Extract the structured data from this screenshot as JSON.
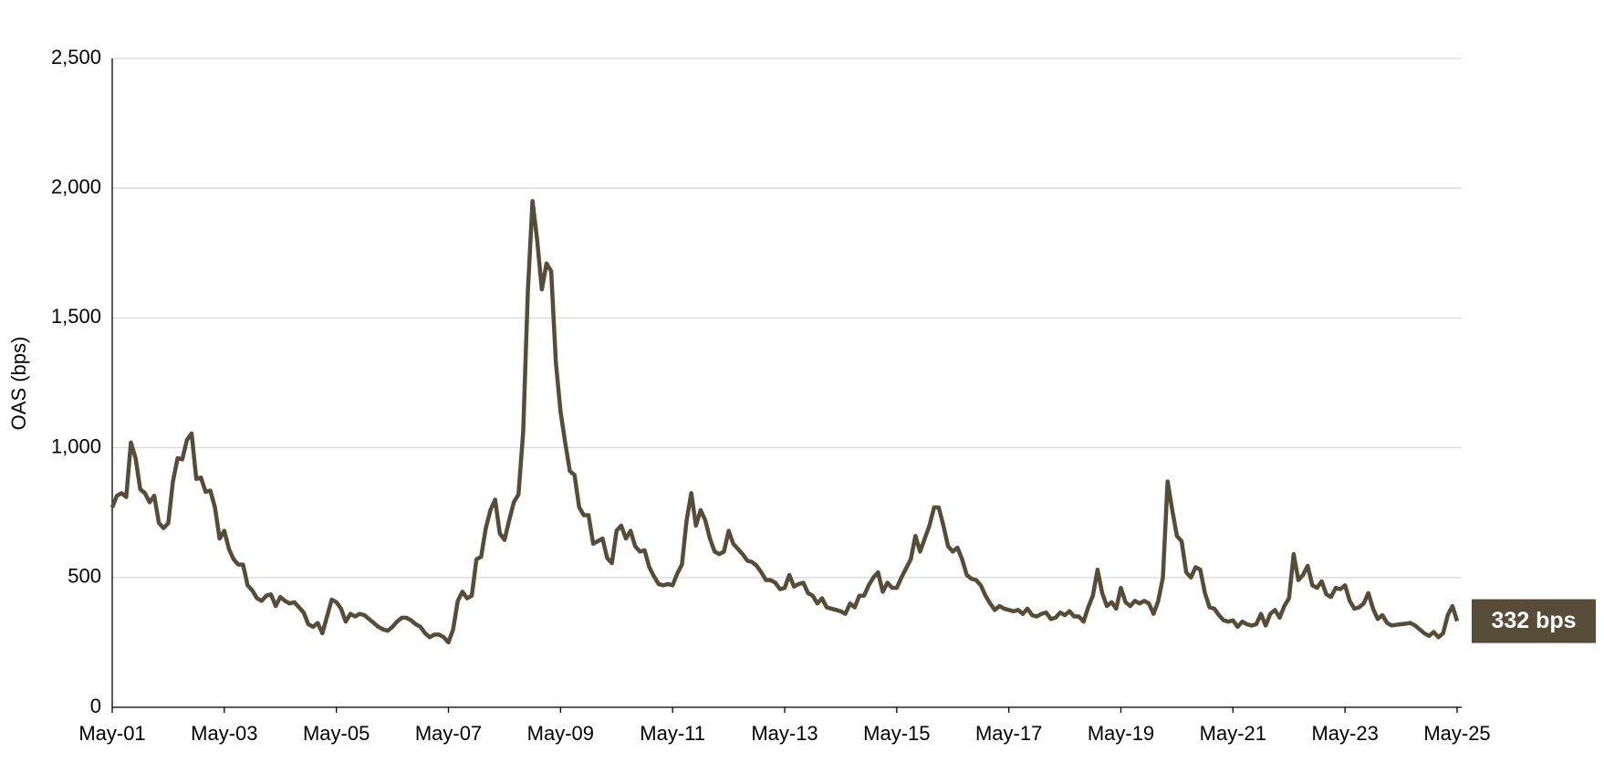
{
  "chart_data": {
    "type": "line",
    "y_label": "OAS (bps)",
    "x": [
      "2001-05",
      "2001-06",
      "2001-07",
      "2001-08",
      "2001-09",
      "2001-10",
      "2001-11",
      "2001-12",
      "2002-01",
      "2002-02",
      "2002-03",
      "2002-04",
      "2002-05",
      "2002-06",
      "2002-07",
      "2002-08",
      "2002-09",
      "2002-10",
      "2002-11",
      "2002-12",
      "2003-01",
      "2003-02",
      "2003-03",
      "2003-04",
      "2003-05",
      "2003-06",
      "2003-07",
      "2003-08",
      "2003-09",
      "2003-10",
      "2003-11",
      "2003-12",
      "2004-01",
      "2004-02",
      "2004-03",
      "2004-04",
      "2004-05",
      "2004-06",
      "2004-07",
      "2004-08",
      "2004-09",
      "2004-10",
      "2004-11",
      "2004-12",
      "2005-01",
      "2005-02",
      "2005-03",
      "2005-04",
      "2005-05",
      "2005-06",
      "2005-07",
      "2005-08",
      "2005-09",
      "2005-10",
      "2005-11",
      "2005-12",
      "2006-01",
      "2006-02",
      "2006-03",
      "2006-04",
      "2006-05",
      "2006-06",
      "2006-07",
      "2006-08",
      "2006-09",
      "2006-10",
      "2006-11",
      "2006-12",
      "2007-01",
      "2007-02",
      "2007-03",
      "2007-04",
      "2007-05",
      "2007-06",
      "2007-07",
      "2007-08",
      "2007-09",
      "2007-10",
      "2007-11",
      "2007-12",
      "2008-01",
      "2008-02",
      "2008-03",
      "2008-04",
      "2008-05",
      "2008-06",
      "2008-07",
      "2008-08",
      "2008-09",
      "2008-10",
      "2008-11",
      "2008-12",
      "2009-01",
      "2009-02",
      "2009-03",
      "2009-04",
      "2009-05",
      "2009-06",
      "2009-07",
      "2009-08",
      "2009-09",
      "2009-10",
      "2009-11",
      "2009-12",
      "2010-01",
      "2010-02",
      "2010-03",
      "2010-04",
      "2010-05",
      "2010-06",
      "2010-07",
      "2010-08",
      "2010-09",
      "2010-10",
      "2010-11",
      "2010-12",
      "2011-01",
      "2011-02",
      "2011-03",
      "2011-04",
      "2011-05",
      "2011-06",
      "2011-07",
      "2011-08",
      "2011-09",
      "2011-10",
      "2011-11",
      "2011-12",
      "2012-01",
      "2012-02",
      "2012-03",
      "2012-04",
      "2012-05",
      "2012-06",
      "2012-07",
      "2012-08",
      "2012-09",
      "2012-10",
      "2012-11",
      "2012-12",
      "2013-01",
      "2013-02",
      "2013-03",
      "2013-04",
      "2013-05",
      "2013-06",
      "2013-07",
      "2013-08",
      "2013-09",
      "2013-10",
      "2013-11",
      "2013-12",
      "2014-01",
      "2014-02",
      "2014-03",
      "2014-04",
      "2014-05",
      "2014-06",
      "2014-07",
      "2014-08",
      "2014-09",
      "2014-10",
      "2014-11",
      "2014-12",
      "2015-01",
      "2015-02",
      "2015-03",
      "2015-04",
      "2015-05",
      "2015-06",
      "2015-07",
      "2015-08",
      "2015-09",
      "2015-10",
      "2015-11",
      "2015-12",
      "2016-01",
      "2016-02",
      "2016-03",
      "2016-04",
      "2016-05",
      "2016-06",
      "2016-07",
      "2016-08",
      "2016-09",
      "2016-10",
      "2016-11",
      "2016-12",
      "2017-01",
      "2017-02",
      "2017-03",
      "2017-04",
      "2017-05",
      "2017-06",
      "2017-07",
      "2017-08",
      "2017-09",
      "2017-10",
      "2017-11",
      "2017-12",
      "2018-01",
      "2018-02",
      "2018-03",
      "2018-04",
      "2018-05",
      "2018-06",
      "2018-07",
      "2018-08",
      "2018-09",
      "2018-10",
      "2018-11",
      "2018-12",
      "2019-01",
      "2019-02",
      "2019-03",
      "2019-04",
      "2019-05",
      "2019-06",
      "2019-07",
      "2019-08",
      "2019-09",
      "2019-10",
      "2019-11",
      "2019-12",
      "2020-01",
      "2020-02",
      "2020-03",
      "2020-04",
      "2020-05",
      "2020-06",
      "2020-07",
      "2020-08",
      "2020-09",
      "2020-10",
      "2020-11",
      "2020-12",
      "2021-01",
      "2021-02",
      "2021-03",
      "2021-04",
      "2021-05",
      "2021-06",
      "2021-07",
      "2021-08",
      "2021-09",
      "2021-10",
      "2021-11",
      "2021-12",
      "2022-01",
      "2022-02",
      "2022-03",
      "2022-04",
      "2022-05",
      "2022-06",
      "2022-07",
      "2022-08",
      "2022-09",
      "2022-10",
      "2022-11",
      "2022-12",
      "2023-01",
      "2023-02",
      "2023-03",
      "2023-04",
      "2023-05",
      "2023-06",
      "2023-07",
      "2023-08",
      "2023-09",
      "2023-10",
      "2023-11",
      "2023-12",
      "2024-01",
      "2024-02",
      "2024-03",
      "2024-04",
      "2024-05",
      "2024-06",
      "2024-07",
      "2024-08",
      "2024-09",
      "2024-10",
      "2024-11",
      "2024-12",
      "2025-01",
      "2025-02",
      "2025-03",
      "2025-04",
      "2025-05"
    ],
    "series": [
      {
        "name": "OAS",
        "color": "#574c37",
        "values": [
          770,
          815,
          825,
          810,
          1020,
          960,
          840,
          825,
          790,
          815,
          710,
          690,
          710,
          870,
          960,
          955,
          1030,
          1055,
          880,
          885,
          830,
          835,
          770,
          650,
          680,
          610,
          570,
          550,
          550,
          470,
          450,
          420,
          410,
          430,
          435,
          390,
          425,
          410,
          400,
          405,
          385,
          365,
          320,
          310,
          325,
          285,
          350,
          415,
          405,
          380,
          330,
          360,
          350,
          360,
          355,
          340,
          325,
          310,
          300,
          295,
          310,
          330,
          345,
          345,
          335,
          320,
          310,
          285,
          270,
          280,
          280,
          270,
          250,
          300,
          410,
          445,
          420,
          430,
          570,
          580,
          690,
          760,
          800,
          670,
          645,
          720,
          790,
          820,
          1060,
          1600,
          1950,
          1800,
          1610,
          1710,
          1680,
          1330,
          1140,
          1020,
          910,
          895,
          770,
          740,
          740,
          630,
          640,
          650,
          575,
          555,
          680,
          700,
          650,
          680,
          620,
          600,
          605,
          540,
          505,
          475,
          470,
          475,
          470,
          515,
          550,
          720,
          825,
          700,
          760,
          720,
          650,
          600,
          590,
          600,
          680,
          630,
          610,
          590,
          565,
          560,
          545,
          520,
          490,
          490,
          480,
          455,
          460,
          510,
          465,
          475,
          480,
          440,
          430,
          400,
          420,
          385,
          380,
          375,
          370,
          360,
          400,
          385,
          430,
          430,
          470,
          500,
          520,
          445,
          480,
          460,
          460,
          500,
          535,
          570,
          660,
          600,
          650,
          700,
          770,
          770,
          700,
          620,
          600,
          615,
          570,
          510,
          495,
          490,
          470,
          430,
          400,
          375,
          390,
          380,
          375,
          370,
          375,
          360,
          380,
          355,
          350,
          360,
          365,
          340,
          345,
          365,
          355,
          370,
          350,
          350,
          330,
          385,
          430,
          530,
          440,
          390,
          405,
          380,
          460,
          405,
          390,
          410,
          400,
          410,
          400,
          360,
          410,
          500,
          870,
          760,
          660,
          640,
          520,
          500,
          540,
          530,
          440,
          385,
          380,
          355,
          335,
          330,
          335,
          310,
          330,
          320,
          315,
          320,
          360,
          315,
          360,
          375,
          345,
          390,
          420,
          590,
          490,
          510,
          545,
          470,
          460,
          485,
          435,
          425,
          460,
          455,
          470,
          410,
          380,
          385,
          400,
          440,
          380,
          340,
          355,
          325,
          315,
          318,
          320,
          322,
          325,
          315,
          300,
          285,
          275,
          290,
          270,
          285,
          355,
          390,
          332
        ]
      }
    ],
    "annotation": "332 bps",
    "xlim": [
      "2001-05",
      "2025-05"
    ],
    "xticks": [
      {
        "value": "2001-05",
        "label": "May-01"
      },
      {
        "value": "2003-05",
        "label": "May-03"
      },
      {
        "value": "2005-05",
        "label": "May-05"
      },
      {
        "value": "2007-05",
        "label": "May-07"
      },
      {
        "value": "2009-05",
        "label": "May-09"
      },
      {
        "value": "2011-05",
        "label": "May-11"
      },
      {
        "value": "2013-05",
        "label": "May-13"
      },
      {
        "value": "2015-05",
        "label": "May-15"
      },
      {
        "value": "2017-05",
        "label": "May-17"
      },
      {
        "value": "2019-05",
        "label": "May-19"
      },
      {
        "value": "2021-05",
        "label": "May-21"
      },
      {
        "value": "2023-05",
        "label": "May-23"
      },
      {
        "value": "2025-05",
        "label": "May-25"
      }
    ],
    "ylim": [
      0,
      2500
    ],
    "yticks": [
      0,
      500,
      {
        "value": 1000,
        "label": "1,000"
      },
      {
        "value": 1500,
        "label": "1,500"
      },
      {
        "value": 2000,
        "label": "2,000"
      },
      {
        "value": 2500,
        "label": "2,500"
      }
    ],
    "grid": true
  }
}
